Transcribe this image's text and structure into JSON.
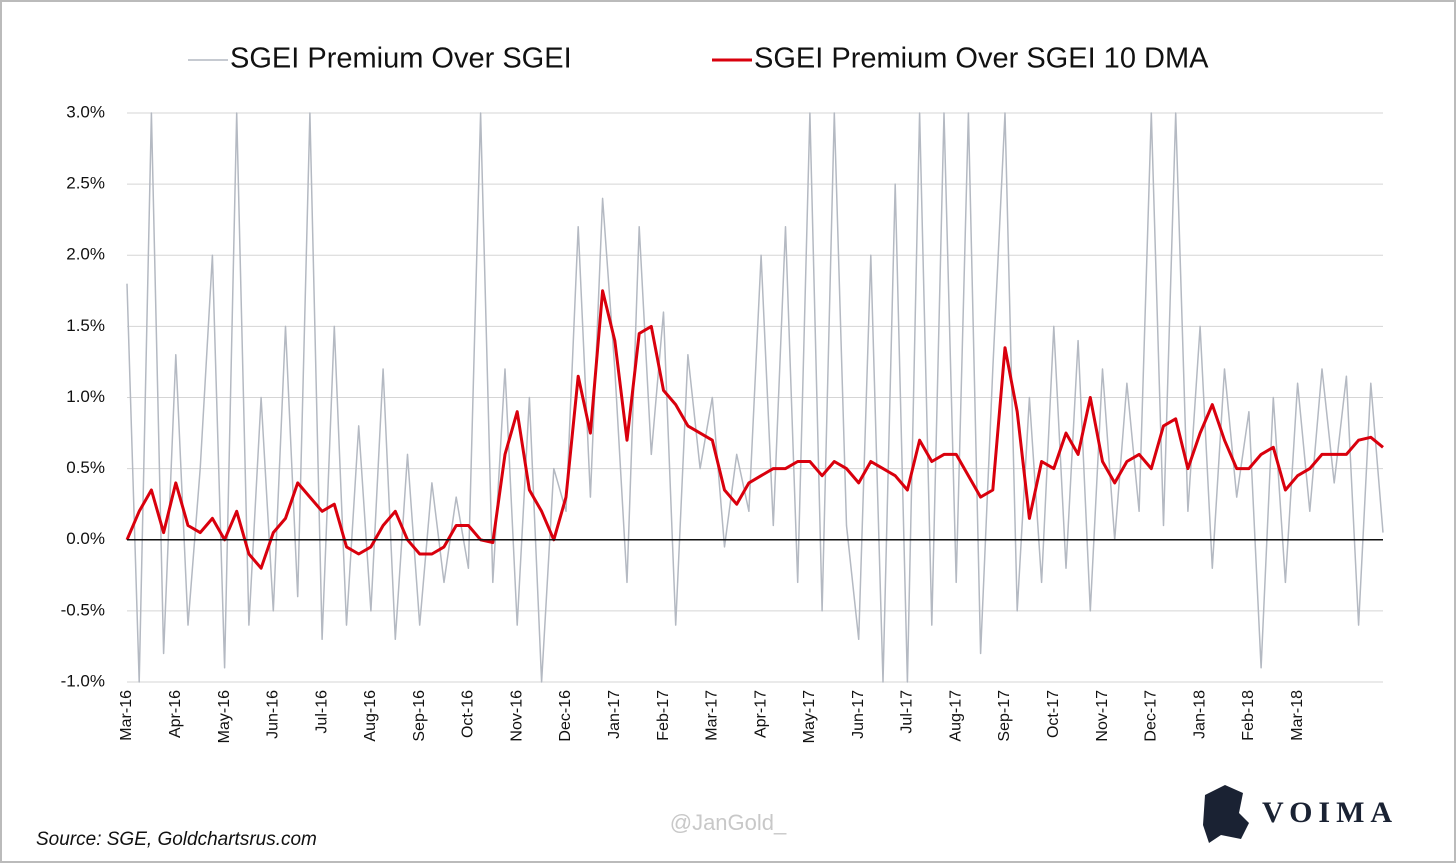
{
  "chart_data": {
    "type": "line",
    "series": [
      {
        "name": "SGEI Premium Over SGEI",
        "color": "#b4b9c2",
        "values": [
          1.8,
          -1.0,
          3.0,
          -0.8,
          1.3,
          -0.6,
          0.5,
          2.0,
          -0.9,
          3.0,
          -0.6,
          1.0,
          -0.5,
          1.5,
          -0.4,
          3.0,
          -0.7,
          1.5,
          -0.6,
          0.8,
          -0.5,
          1.2,
          -0.7,
          0.6,
          -0.6,
          0.4,
          -0.3,
          0.3,
          -0.2,
          3.0,
          -0.3,
          1.2,
          -0.6,
          1.0,
          -1.0,
          0.5,
          0.2,
          2.2,
          0.3,
          2.4,
          1.2,
          -0.3,
          2.2,
          0.6,
          1.6,
          -0.6,
          1.3,
          0.5,
          1.0,
          -0.05,
          0.6,
          0.2,
          2.0,
          0.1,
          2.2,
          -0.3,
          3.0,
          -0.5,
          3.0,
          0.1,
          -0.7,
          2.0,
          -1.0,
          2.5,
          -1.0,
          3.0,
          -0.6,
          3.0,
          -0.3,
          3.0,
          -0.8,
          1.2,
          3.0,
          -0.5,
          1.0,
          -0.3,
          1.5,
          -0.2,
          1.4,
          -0.5,
          1.2,
          0.0,
          1.1,
          0.2,
          3.0,
          0.1,
          3.0,
          0.2,
          1.5,
          -0.2,
          1.2,
          0.3,
          0.9,
          -0.9,
          1.0,
          -0.3,
          1.1,
          0.2,
          1.2,
          0.4,
          1.15,
          -0.6,
          1.1,
          0.05
        ]
      },
      {
        "name": "SGEI Premium Over SGEI 10 DMA",
        "color": "#d9000d",
        "values": [
          0.0,
          0.2,
          0.35,
          0.05,
          0.4,
          0.1,
          0.05,
          0.15,
          0.0,
          0.2,
          -0.1,
          -0.2,
          0.05,
          0.15,
          0.4,
          0.3,
          0.2,
          0.25,
          -0.05,
          -0.1,
          -0.05,
          0.1,
          0.2,
          0.0,
          -0.1,
          -0.1,
          -0.05,
          0.1,
          0.1,
          0.0,
          -0.02,
          0.6,
          0.9,
          0.35,
          0.2,
          0.0,
          0.3,
          1.15,
          0.75,
          1.75,
          1.4,
          0.7,
          1.45,
          1.5,
          1.05,
          0.95,
          0.8,
          0.75,
          0.7,
          0.35,
          0.25,
          0.4,
          0.45,
          0.5,
          0.5,
          0.55,
          0.55,
          0.45,
          0.55,
          0.5,
          0.4,
          0.55,
          0.5,
          0.45,
          0.35,
          0.7,
          0.55,
          0.6,
          0.6,
          0.45,
          0.3,
          0.35,
          1.35,
          0.9,
          0.15,
          0.55,
          0.5,
          0.75,
          0.6,
          1.0,
          0.55,
          0.4,
          0.55,
          0.6,
          0.5,
          0.8,
          0.85,
          0.5,
          0.75,
          0.95,
          0.7,
          0.5,
          0.5,
          0.6,
          0.65,
          0.35,
          0.45,
          0.5,
          0.6,
          0.6,
          0.6,
          0.7,
          0.72,
          0.65
        ]
      }
    ],
    "categories": [
      "Mar-16",
      null,
      null,
      null,
      "Apr-16",
      null,
      null,
      null,
      "May-16",
      null,
      null,
      null,
      "Jun-16",
      null,
      null,
      null,
      "Jul-16",
      null,
      null,
      null,
      "Aug-16",
      null,
      null,
      null,
      "Sep-16",
      null,
      null,
      null,
      "Oct-16",
      null,
      null,
      null,
      "Nov-16",
      null,
      null,
      null,
      "Dec-16",
      null,
      null,
      null,
      "Jan-17",
      null,
      null,
      null,
      "Feb-17",
      null,
      null,
      null,
      "Mar-17",
      null,
      null,
      null,
      "Apr-17",
      null,
      null,
      null,
      "May-17",
      null,
      null,
      null,
      "Jun-17",
      null,
      null,
      null,
      "Jul-17",
      null,
      null,
      null,
      "Aug-17",
      null,
      null,
      null,
      "Sep-17",
      null,
      null,
      null,
      "Oct-17",
      null,
      null,
      null,
      "Nov-17",
      null,
      null,
      null,
      "Dec-17",
      null,
      null,
      null,
      "Jan-18",
      null,
      null,
      null,
      "Feb-18",
      null,
      null,
      null,
      "Mar-18",
      null,
      null,
      null,
      null,
      null,
      null,
      null
    ],
    "ylim": [
      -1,
      3
    ],
    "yticks": [
      {
        "value": -1,
        "label": "-1.0%"
      },
      {
        "value": -0.5,
        "label": "-0.5%"
      },
      {
        "value": 0,
        "label": "0.0%"
      },
      {
        "value": 0.5,
        "label": "0.5%"
      },
      {
        "value": 1,
        "label": "1.0%"
      },
      {
        "value": 1.5,
        "label": "1.5%"
      },
      {
        "value": 2,
        "label": "2.0%"
      },
      {
        "value": 2.5,
        "label": "2.5%"
      },
      {
        "value": 3,
        "label": "3.0%"
      }
    ],
    "grid": true,
    "legend": "top",
    "source": "Source: SGE, Goldchartsrus.com",
    "watermark": "@JanGold_",
    "brand": "VOIMA"
  }
}
